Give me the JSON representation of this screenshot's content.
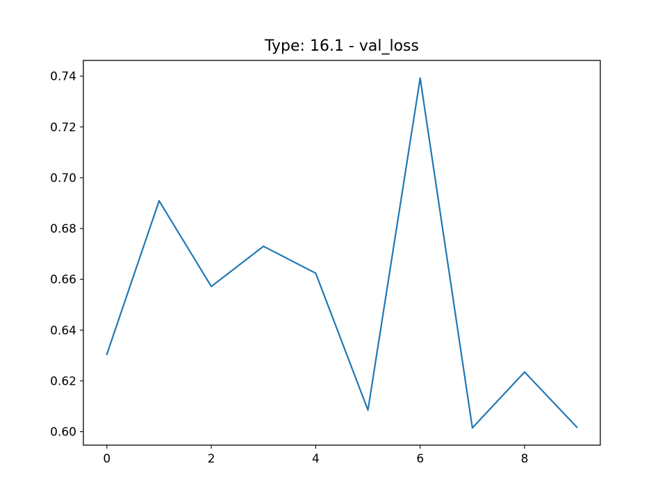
{
  "chart_data": {
    "type": "line",
    "title": "Type: 16.1 - val_loss",
    "xlabel": "",
    "ylabel": "",
    "x": [
      0,
      1,
      2,
      3,
      4,
      5,
      6,
      7,
      8,
      9
    ],
    "series": [
      {
        "values": [
          0.6305,
          0.6909,
          0.6572,
          0.673,
          0.6624,
          0.6085,
          0.7392,
          0.6015,
          0.6235,
          0.6018
        ],
        "color": "#1f77b4"
      }
    ],
    "xlim": [
      -0.45,
      9.45
    ],
    "ylim": [
      0.5947,
      0.7462
    ],
    "xticks": [
      0,
      2,
      4,
      6,
      8
    ],
    "xtick_labels": [
      "0",
      "2",
      "4",
      "6",
      "8"
    ],
    "yticks": [
      0.6,
      0.62,
      0.64,
      0.66,
      0.68,
      0.7,
      0.72,
      0.74
    ],
    "ytick_labels": [
      "0.60",
      "0.62",
      "0.64",
      "0.66",
      "0.68",
      "0.70",
      "0.72",
      "0.74"
    ],
    "grid": false,
    "legend": "none"
  }
}
